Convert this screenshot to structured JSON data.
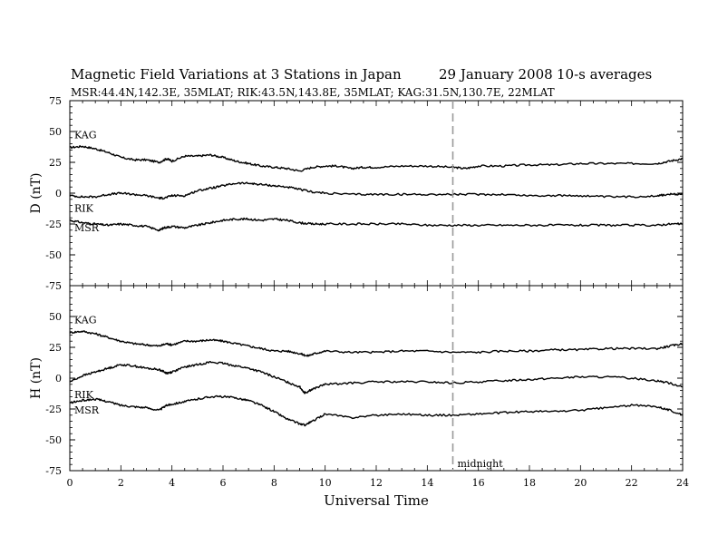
{
  "header": {
    "title": "Magnetic Field Variations at 3 Stations in Japan",
    "date": "29 January 2008",
    "averaging": "10-s averages",
    "stations": "MSR:44.4N,142.3E, 35MLAT;  RIK:43.5N,143.8E, 35MLAT;  KAG:31.5N,130.7E, 22MLAT"
  },
  "chart_data": [
    {
      "type": "line",
      "ylabel": "D (nT)",
      "ylim": [
        -75,
        75
      ],
      "yticks": [
        -75,
        -50,
        -25,
        0,
        25,
        50,
        75
      ],
      "xlim": [
        0,
        24
      ],
      "series": [
        {
          "name": "KAG",
          "x": [
            0,
            0.5,
            1,
            1.5,
            2,
            2.5,
            3,
            3.5,
            3.8,
            4,
            4.5,
            5,
            5.5,
            6,
            6.5,
            7,
            7.5,
            8,
            8.5,
            9,
            9.5,
            10,
            10.5,
            11,
            11.5,
            12,
            13,
            14,
            15,
            15.5,
            16,
            17,
            18,
            19,
            20,
            21,
            22,
            23,
            23.5,
            24
          ],
          "y": [
            37,
            38,
            36,
            33,
            29,
            27,
            27,
            25,
            28,
            26,
            30,
            30,
            31,
            29,
            26,
            24,
            22,
            21,
            20,
            18,
            21,
            22,
            22,
            20,
            21,
            21,
            22,
            22,
            21,
            20,
            22,
            22,
            23,
            23,
            24,
            24,
            24,
            24,
            26,
            28
          ]
        },
        {
          "name": "RIK",
          "x": [
            0,
            0.5,
            1,
            1.5,
            2,
            2.5,
            3,
            3.5,
            3.7,
            4,
            4.5,
            5,
            5.5,
            6,
            6.5,
            7,
            7.5,
            8,
            8.5,
            9,
            9.5,
            10,
            11,
            12,
            13,
            14,
            15,
            16,
            17,
            18,
            19,
            20,
            21,
            22,
            23,
            23.5,
            24
          ],
          "y": [
            -2,
            -3,
            -3,
            -1,
            0,
            -1,
            -2,
            -4,
            -4,
            -2,
            -2,
            2,
            4,
            6,
            8,
            8,
            7,
            6,
            5,
            3,
            1,
            0,
            -1,
            -1,
            -1,
            -1,
            -1,
            -1,
            -1,
            -2,
            -2,
            -2,
            -3,
            -3,
            -2,
            -1,
            -1
          ]
        },
        {
          "name": "MSR",
          "x": [
            0,
            0.5,
            1,
            1.5,
            2,
            2.5,
            3,
            3.5,
            3.7,
            4,
            4.5,
            5,
            5.5,
            6,
            6.5,
            7,
            7.5,
            8,
            8.5,
            9,
            9.5,
            10,
            11,
            12,
            13,
            14,
            15,
            16,
            17,
            18,
            19,
            20,
            21,
            22,
            23,
            23.5,
            24
          ],
          "y": [
            -22,
            -24,
            -25,
            -26,
            -25,
            -26,
            -27,
            -30,
            -28,
            -27,
            -28,
            -26,
            -24,
            -22,
            -21,
            -21,
            -22,
            -21,
            -22,
            -24,
            -25,
            -25,
            -25,
            -25,
            -25,
            -26,
            -26,
            -26,
            -26,
            -26,
            -26,
            -26,
            -26,
            -26,
            -26,
            -25,
            -25
          ]
        }
      ]
    },
    {
      "type": "line",
      "ylabel": "H (nT)",
      "xlabel": "Universal Time",
      "ylim": [
        -75,
        75
      ],
      "yticks": [
        -75,
        -50,
        -25,
        0,
        25,
        50
      ],
      "xlim": [
        0,
        24
      ],
      "xticks": [
        0,
        2,
        4,
        6,
        8,
        10,
        12,
        14,
        16,
        18,
        20,
        22,
        24
      ],
      "annotation": {
        "label": "midnight",
        "x": 15
      },
      "series": [
        {
          "name": "KAG",
          "x": [
            0,
            0.5,
            1,
            1.5,
            2,
            2.5,
            3,
            3.5,
            3.8,
            4,
            4.5,
            5,
            5.5,
            6,
            6.5,
            7,
            7.5,
            8,
            8.5,
            9,
            9.3,
            9.6,
            10,
            11,
            12,
            13,
            14,
            15,
            16,
            17,
            18,
            19,
            20,
            21,
            22,
            23,
            23.5,
            24
          ],
          "y": [
            37,
            38,
            36,
            33,
            30,
            28,
            27,
            26,
            28,
            27,
            30,
            30,
            31,
            30,
            28,
            26,
            24,
            22,
            22,
            20,
            18,
            20,
            22,
            21,
            21,
            22,
            22,
            21,
            21,
            22,
            22,
            23,
            23,
            24,
            24,
            24,
            26,
            28
          ]
        },
        {
          "name": "RIK",
          "x": [
            0,
            0.5,
            1,
            1.5,
            2,
            2.5,
            3,
            3.5,
            3.8,
            4,
            4.5,
            5,
            5.5,
            6,
            6.5,
            7,
            7.5,
            8,
            8.5,
            9,
            9.2,
            9.5,
            10,
            11,
            12,
            13,
            14,
            15,
            16,
            17,
            18,
            19,
            20,
            21,
            22,
            23,
            23.5,
            24
          ],
          "y": [
            -3,
            2,
            5,
            8,
            11,
            10,
            8,
            7,
            4,
            5,
            9,
            11,
            13,
            12,
            10,
            8,
            5,
            1,
            -3,
            -7,
            -12,
            -9,
            -5,
            -4,
            -3,
            -3,
            -3,
            -4,
            -3,
            -2,
            -1,
            0,
            1,
            1,
            0,
            -2,
            -4,
            -7
          ]
        },
        {
          "name": "MSR",
          "x": [
            0,
            0.5,
            1,
            1.5,
            2,
            2.5,
            3,
            3.5,
            3.8,
            4,
            4.5,
            5,
            5.5,
            6,
            6.5,
            7,
            7.5,
            8,
            8.5,
            9,
            9.2,
            9.5,
            10,
            11,
            12,
            13,
            14,
            15,
            16,
            17,
            18,
            19,
            20,
            21,
            22,
            23,
            23.5,
            24
          ],
          "y": [
            -20,
            -18,
            -17,
            -19,
            -22,
            -23,
            -24,
            -26,
            -22,
            -21,
            -19,
            -17,
            -15,
            -15,
            -16,
            -18,
            -22,
            -27,
            -33,
            -37,
            -38,
            -35,
            -29,
            -32,
            -30,
            -29,
            -30,
            -30,
            -29,
            -28,
            -27,
            -27,
            -26,
            -24,
            -22,
            -23,
            -26,
            -30
          ]
        }
      ]
    }
  ]
}
